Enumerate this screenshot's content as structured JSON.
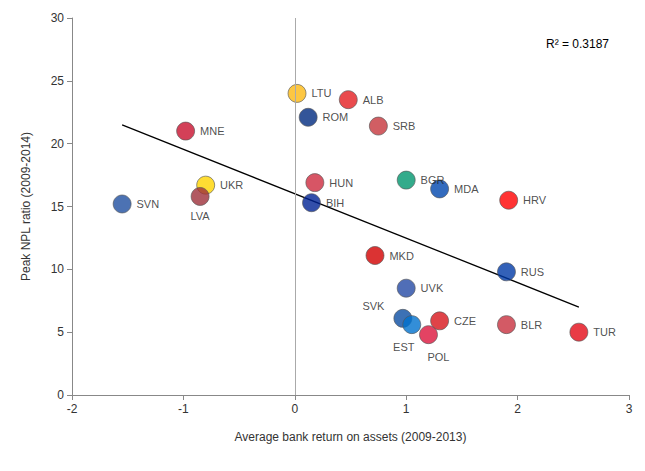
{
  "chart_data": {
    "type": "scatter",
    "x_label": "Average bank return on assets (2009-2013)",
    "y_label": "Peak NPL ratio (2009-2014)",
    "labels": [
      "SVN",
      "MNE",
      "UKR",
      "LVA",
      "LTU",
      "ALB",
      "ROM",
      "SRB",
      "HUN",
      "BIH",
      "BGR",
      "MDA",
      "HRV",
      "MKD",
      "RUS",
      "UVK",
      "SVK",
      "EST",
      "CZE",
      "POL",
      "BLR",
      "TUR"
    ],
    "x": [
      -1.55,
      -0.98,
      -0.8,
      -0.85,
      0.02,
      0.48,
      0.12,
      0.75,
      0.18,
      0.15,
      1.0,
      1.3,
      1.92,
      0.72,
      1.9,
      1.0,
      0.97,
      1.05,
      1.3,
      1.2,
      1.9,
      2.55
    ],
    "y": [
      15.2,
      21.0,
      16.7,
      15.8,
      24.0,
      23.5,
      22.1,
      21.4,
      16.9,
      15.3,
      17.1,
      16.4,
      15.5,
      11.1,
      9.8,
      8.5,
      6.1,
      5.6,
      5.9,
      4.8,
      5.6,
      5.0
    ],
    "colors": [
      "#1f4fa0",
      "#c8102e",
      "#ffd500",
      "#9e3039",
      "#fdb913",
      "#e41e20",
      "#002b7f",
      "#c6363c",
      "#cd2a3e",
      "#002395",
      "#00966e",
      "#0046ae",
      "#ff0000",
      "#d20000",
      "#0039a6",
      "#244aa5",
      "#0b4ea2",
      "#0072ce",
      "#d7141a",
      "#dc143c",
      "#c8313e",
      "#e30a17"
    ],
    "marker": "circle",
    "trendline": {
      "x": [
        -1.55,
        2.55
      ],
      "y": [
        21.5,
        7.0
      ],
      "color": "#000000"
    },
    "reference_line_x": 0,
    "annotation": "R² = 0.3187",
    "xlim": [
      -2,
      3
    ],
    "xticks": [
      -2,
      -1,
      0,
      1,
      2,
      3
    ],
    "ylim": [
      0,
      30
    ],
    "yticks": [
      0,
      5,
      10,
      15,
      20,
      25,
      30
    ],
    "grid": false
  }
}
